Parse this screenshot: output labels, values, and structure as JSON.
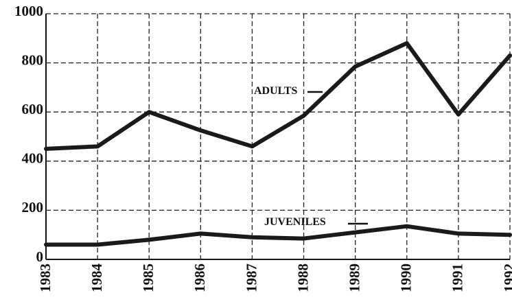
{
  "chart_data": {
    "type": "line",
    "x": [
      1983,
      1984,
      1985,
      1986,
      1987,
      1988,
      1989,
      1990,
      1991,
      1992
    ],
    "xlim": [
      1983,
      1992
    ],
    "xticks": [
      1983,
      1984,
      1985,
      1986,
      1987,
      1988,
      1989,
      1990,
      1991,
      1992
    ],
    "ylim": [
      0,
      1000
    ],
    "yticks": [
      0,
      200,
      400,
      600,
      800,
      1000
    ],
    "grid": true,
    "series": [
      {
        "name": "ADULTS",
        "color": "#1a1a1a",
        "values": [
          450,
          460,
          600,
          525,
          460,
          585,
          785,
          880,
          590,
          830
        ]
      },
      {
        "name": "JUVENILES",
        "color": "#1a1a1a",
        "values": [
          60,
          60,
          80,
          105,
          90,
          85,
          110,
          135,
          105,
          100
        ]
      }
    ]
  }
}
